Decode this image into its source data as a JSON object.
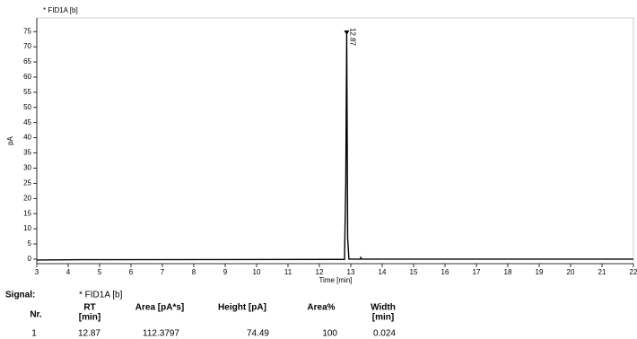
{
  "chart_data": {
    "type": "line",
    "title": "* FID1A [b]",
    "y_label": "pA",
    "x_label": "Time [min]",
    "x": [
      3,
      4.5,
      12.8,
      12.84,
      12.87,
      12.9,
      12.94,
      13.3,
      13.32,
      13.34,
      22
    ],
    "series": [
      {
        "color": "#000000",
        "values": [
          -0.3,
          -0.2,
          -0.1,
          25,
          74.49,
          7,
          0,
          0,
          0.5,
          0,
          0
        ]
      }
    ],
    "xlim": [
      3,
      22
    ],
    "xticks": [
      3,
      4,
      5,
      6,
      7,
      8,
      9,
      10,
      11,
      12,
      13,
      14,
      15,
      16,
      17,
      18,
      19,
      20,
      21,
      22
    ],
    "ylim": [
      -1.5,
      79.5
    ],
    "yticks": [
      0,
      5,
      10,
      15,
      20,
      25,
      30,
      35,
      40,
      45,
      50,
      55,
      60,
      65,
      70,
      75
    ],
    "annotations": [
      {
        "text": "12.87",
        "x": 12.87,
        "y": 74.49
      }
    ]
  },
  "table": {
    "signal_label": "Signal:",
    "signal": "* FID1A [b]",
    "headers": [
      [
        "Nr."
      ],
      [
        "RT",
        "[min]"
      ],
      [
        "Area [pA*s]"
      ],
      [
        "Height [pA]"
      ],
      [
        "Area%"
      ],
      [
        "Width",
        "[min]"
      ]
    ],
    "rows": [
      [
        "1",
        "12.87",
        "112.3797",
        "74.49",
        "100",
        "0.024"
      ]
    ]
  }
}
